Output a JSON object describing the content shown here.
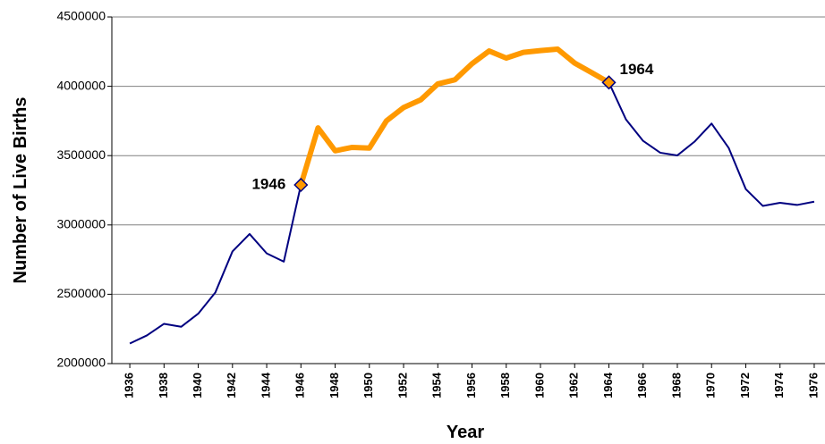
{
  "chart_data": {
    "type": "line",
    "x_label": "Year",
    "y_label": "Number of Live Births",
    "x": [
      1936,
      1937,
      1938,
      1939,
      1940,
      1941,
      1942,
      1943,
      1944,
      1945,
      1946,
      1947,
      1948,
      1949,
      1950,
      1951,
      1952,
      1953,
      1954,
      1955,
      1956,
      1957,
      1958,
      1959,
      1960,
      1961,
      1962,
      1963,
      1964,
      1965,
      1966,
      1967,
      1968,
      1969,
      1970,
      1971,
      1972,
      1973,
      1974,
      1975,
      1976
    ],
    "series": [
      {
        "color": "#000080",
        "highlight_color": "#ff9900",
        "values": [
          2144790,
          2203337,
          2286962,
          2265588,
          2360399,
          2513427,
          2808996,
          2934860,
          2794800,
          2735456,
          3288672,
          3699940,
          3535068,
          3559529,
          3554149,
          3750850,
          3846986,
          3902120,
          4017362,
          4047295,
          4163090,
          4254784,
          4203812,
          4244796,
          4257850,
          4268326,
          4167362,
          4098020,
          4027490,
          3760358,
          3606274,
          3520959,
          3501564,
          3600206,
          3731386,
          3555970,
          3258411,
          3136965,
          3159958,
          3144198,
          3167788
        ]
      }
    ],
    "annotations": [
      {
        "x": 1946,
        "text": "1946",
        "side": "left"
      },
      {
        "x": 1964,
        "text": "1964",
        "side": "right"
      }
    ],
    "xlim": [
      1934.95,
      1976.63
    ],
    "xticks": [
      1936,
      1938,
      1940,
      1942,
      1944,
      1946,
      1948,
      1950,
      1952,
      1954,
      1956,
      1958,
      1960,
      1962,
      1964,
      1966,
      1968,
      1970,
      1972,
      1974,
      1976
    ],
    "ylim": [
      2000000,
      4500000
    ],
    "yticks": [
      2000000,
      2500000,
      3000000,
      3500000,
      4000000,
      4500000
    ],
    "grid": true
  }
}
